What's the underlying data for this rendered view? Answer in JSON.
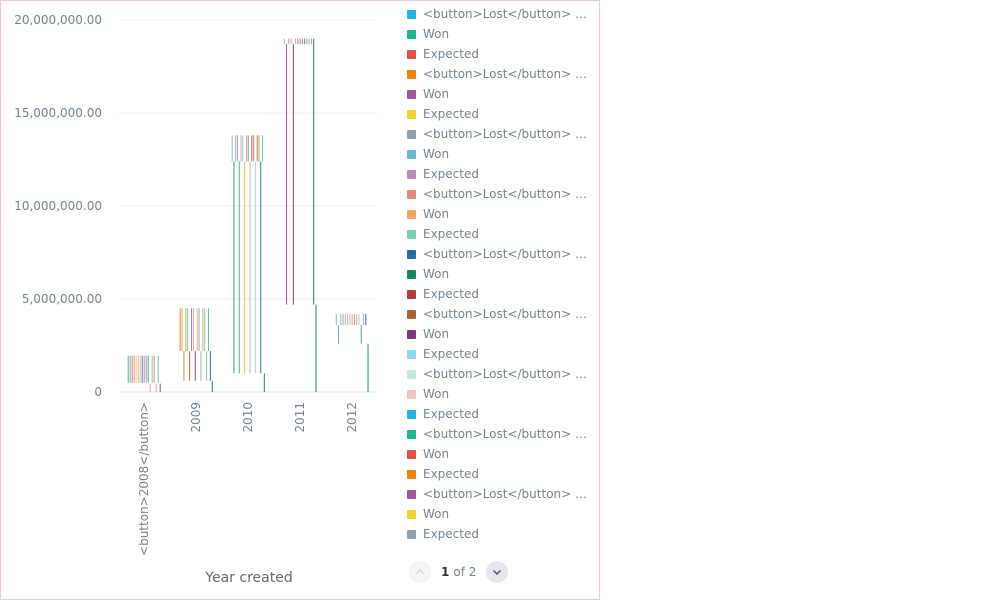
{
  "chart_data": {
    "type": "bar",
    "xlabel": "Year created",
    "ylabel": "",
    "ylim": [
      0,
      20000000
    ],
    "yticks": [
      {
        "value": 0,
        "label": "0"
      },
      {
        "value": 5000000,
        "label": "5,000,000.00"
      },
      {
        "value": 10000000,
        "label": "10,000,000.00"
      },
      {
        "value": 15000000,
        "label": "15,000,000.00"
      },
      {
        "value": 20000000,
        "label": "20,000,000.00"
      }
    ],
    "categories": [
      "<button>2008</button>",
      "2009",
      "2010",
      "2011",
      "2012"
    ],
    "grid": true,
    "legend_position": "right",
    "bar_groups": [
      {
        "category": "<button>2008</button>",
        "bars": [
          {
            "bottom": 500000,
            "top": 1950000,
            "color": "#509ee3"
          },
          {
            "bottom": 500000,
            "top": 1950000,
            "color": "#88bf4d"
          },
          {
            "bottom": 500000,
            "top": 1950000,
            "color": "#a989c5"
          },
          {
            "bottom": 500000,
            "top": 1950000,
            "color": "#ef8c8c"
          },
          {
            "bottom": 500000,
            "top": 1950000,
            "color": "#f9d45c"
          },
          {
            "bottom": 500000,
            "top": 1950000,
            "color": "#f2a86f"
          },
          {
            "bottom": 500000,
            "top": 1950000,
            "color": "#98d9d9"
          },
          {
            "bottom": 500000,
            "top": 1950000,
            "color": "#7172ad"
          },
          {
            "bottom": 500000,
            "top": 1950000,
            "color": "#c589b9"
          },
          {
            "bottom": 500000,
            "top": 1950000,
            "color": "#97a4ad"
          },
          {
            "bottom": 500000,
            "top": 1950000,
            "color": "#3ca6c8"
          },
          {
            "bottom": 0,
            "top": 450000,
            "color": "#e8a3a3"
          },
          {
            "bottom": 500000,
            "top": 1950000,
            "color": "#e0a86b"
          },
          {
            "bottom": 500000,
            "top": 1950000,
            "color": "#a4a4a4"
          },
          {
            "bottom": 0,
            "top": 450000,
            "color": "#de9f73"
          },
          {
            "bottom": 500000,
            "top": 1950000,
            "color": "#70c2a8"
          },
          {
            "bottom": 0,
            "top": 450000,
            "color": "#227fb8"
          }
        ]
      },
      {
        "category": "2009",
        "bars": [
          {
            "bottom": 2200000,
            "top": 4500000,
            "color": "#e08c36"
          },
          {
            "bottom": 2200000,
            "top": 4500000,
            "color": "#ef9c4f"
          },
          {
            "bottom": 600000,
            "top": 2200000,
            "color": "#c98f4f"
          },
          {
            "bottom": 2200000,
            "top": 4500000,
            "color": "#9ac46a"
          },
          {
            "bottom": 2200000,
            "top": 4500000,
            "color": "#84c4b7"
          },
          {
            "bottom": 600000,
            "top": 2200000,
            "color": "#b56d3a"
          },
          {
            "bottom": 2200000,
            "top": 4500000,
            "color": "#a67fc0"
          },
          {
            "bottom": 2200000,
            "top": 4500000,
            "color": "#dd9ba5"
          },
          {
            "bottom": 600000,
            "top": 2200000,
            "color": "#8f4a74"
          },
          {
            "bottom": 2200000,
            "top": 4500000,
            "color": "#e8c25c"
          },
          {
            "bottom": 2200000,
            "top": 4500000,
            "color": "#8fa7c8"
          },
          {
            "bottom": 600000,
            "top": 2200000,
            "color": "#9ab2b3"
          },
          {
            "bottom": 2200000,
            "top": 4500000,
            "color": "#d7b35a"
          },
          {
            "bottom": 2200000,
            "top": 4500000,
            "color": "#7ec8ba"
          },
          {
            "bottom": 600000,
            "top": 2200000,
            "color": "#a0c0a0"
          },
          {
            "bottom": 2200000,
            "top": 4500000,
            "color": "#5fc98f"
          },
          {
            "bottom": 600000,
            "top": 2200000,
            "color": "#2d6e93"
          },
          {
            "bottom": 0,
            "top": 600000,
            "color": "#1b8a63"
          }
        ]
      },
      {
        "category": "2010",
        "bars": [
          {
            "bottom": 12400000,
            "top": 13800000,
            "color": "#8dc2b5"
          },
          {
            "bottom": 1000000,
            "top": 12400000,
            "color": "#23a38f"
          },
          {
            "bottom": 12400000,
            "top": 13800000,
            "color": "#8fb0d3"
          },
          {
            "bottom": 12400000,
            "top": 13800000,
            "color": "#c5a0c2"
          },
          {
            "bottom": 1000000,
            "top": 12400000,
            "color": "#51b08f"
          },
          {
            "bottom": 12400000,
            "top": 13800000,
            "color": "#e0a0b0"
          },
          {
            "bottom": 12400000,
            "top": 13800000,
            "color": "#9ec3d8"
          },
          {
            "bottom": 1000000,
            "top": 12400000,
            "color": "#edc454"
          },
          {
            "bottom": 12400000,
            "top": 13800000,
            "color": "#e89f7f"
          },
          {
            "bottom": 12400000,
            "top": 13800000,
            "color": "#8e8fb8"
          },
          {
            "bottom": 1000000,
            "top": 12400000,
            "color": "#a8c8a8"
          },
          {
            "bottom": 12400000,
            "top": 13800000,
            "color": "#bd5a5a"
          },
          {
            "bottom": 12400000,
            "top": 13800000,
            "color": "#c1906f"
          },
          {
            "bottom": 1000000,
            "top": 12400000,
            "color": "#a6d7e9"
          },
          {
            "bottom": 12400000,
            "top": 13800000,
            "color": "#e47c4f"
          },
          {
            "bottom": 12400000,
            "top": 13800000,
            "color": "#7bbd8c"
          },
          {
            "bottom": 1000000,
            "top": 12400000,
            "color": "#2b79a5"
          },
          {
            "bottom": 12400000,
            "top": 13800000,
            "color": "#7ec48e"
          },
          {
            "bottom": 0,
            "top": 1000000,
            "color": "#1b8a63"
          }
        ]
      },
      {
        "category": "2011",
        "bars": [
          {
            "bottom": 18700000,
            "top": 19000000,
            "color": "#c5a8d6"
          },
          {
            "bottom": 4700000,
            "top": 18700000,
            "color": "#a44f8e"
          },
          {
            "bottom": 18700000,
            "top": 19000000,
            "color": "#d58fa5"
          },
          {
            "bottom": 18700000,
            "top": 19000000,
            "color": "#9fb7ce"
          },
          {
            "bottom": 4700000,
            "top": 18700000,
            "color": "#8a3f7b"
          },
          {
            "bottom": 18700000,
            "top": 19000000,
            "color": "#e2a07b"
          },
          {
            "bottom": 18700000,
            "top": 19000000,
            "color": "#b6889f"
          },
          {
            "bottom": 18700000,
            "top": 19000000,
            "color": "#7e97a4"
          },
          {
            "bottom": 18700000,
            "top": 19000000,
            "color": "#c27d62"
          },
          {
            "bottom": 18700000,
            "top": 19000000,
            "color": "#a45a8b"
          },
          {
            "bottom": 18700000,
            "top": 19000000,
            "color": "#80a8bf"
          },
          {
            "bottom": 18700000,
            "top": 19000000,
            "color": "#d6a66b"
          },
          {
            "bottom": 18700000,
            "top": 19000000,
            "color": "#89bca3"
          },
          {
            "bottom": 4700000,
            "top": 19000000,
            "color": "#187b63"
          },
          {
            "bottom": 0,
            "top": 4700000,
            "color": "#178a5c"
          }
        ]
      },
      {
        "category": "2012",
        "bars": [
          {
            "bottom": 3600000,
            "top": 4200000,
            "color": "#6fc2c2"
          },
          {
            "bottom": 2600000,
            "top": 3600000,
            "color": "#4ab0b0"
          },
          {
            "bottom": 3600000,
            "top": 4200000,
            "color": "#85c98f"
          },
          {
            "bottom": 3600000,
            "top": 4200000,
            "color": "#a7a7d3"
          },
          {
            "bottom": 3600000,
            "top": 4200000,
            "color": "#e4a0a0"
          },
          {
            "bottom": 3600000,
            "top": 4200000,
            "color": "#93c5e0"
          },
          {
            "bottom": 3600000,
            "top": 4200000,
            "color": "#f0c070"
          },
          {
            "bottom": 3600000,
            "top": 4200000,
            "color": "#d79bd7"
          },
          {
            "bottom": 3600000,
            "top": 4200000,
            "color": "#e08c36"
          },
          {
            "bottom": 3600000,
            "top": 4200000,
            "color": "#a0b8c8"
          },
          {
            "bottom": 3600000,
            "top": 4200000,
            "color": "#b9d79b"
          },
          {
            "bottom": 2600000,
            "top": 3600000,
            "color": "#3ea5b5"
          },
          {
            "bottom": 3600000,
            "top": 4200000,
            "color": "#c9a6d6"
          },
          {
            "bottom": 3600000,
            "top": 4200000,
            "color": "#2d6f96"
          },
          {
            "bottom": 0,
            "top": 2600000,
            "color": "#1d9065"
          }
        ]
      }
    ]
  },
  "legend": {
    "items": [
      {
        "label": "<button>Lost</button> …",
        "color": "#29b3e0"
      },
      {
        "label": "Won",
        "color": "#1fb58d"
      },
      {
        "label": "Expected",
        "color": "#e35245"
      },
      {
        "label": "<button>Lost</button> …",
        "color": "#ef8400"
      },
      {
        "label": "Won",
        "color": "#a5549e"
      },
      {
        "label": "Expected",
        "color": "#f3d22a"
      },
      {
        "label": "<button>Lost</button> …",
        "color": "#92a1ab"
      },
      {
        "label": "Won",
        "color": "#67b9d0"
      },
      {
        "label": "Expected",
        "color": "#b98bbb"
      },
      {
        "label": "<button>Lost</button> …",
        "color": "#e68a80"
      },
      {
        "label": "Won",
        "color": "#eba85e"
      },
      {
        "label": "Expected",
        "color": "#7ecfb0"
      },
      {
        "label": "<button>Lost</button> …",
        "color": "#2a6aa5"
      },
      {
        "label": "Won",
        "color": "#148461"
      },
      {
        "label": "Expected",
        "color": "#b43d3b"
      },
      {
        "label": "<button>Lost</button> …",
        "color": "#a2652f"
      },
      {
        "label": "Won",
        "color": "#7a3a7d"
      },
      {
        "label": "Expected",
        "color": "#8fd7e9"
      },
      {
        "label": "<button>Lost</button> …",
        "color": "#bfe9d9"
      },
      {
        "label": "Won",
        "color": "#f1c3c0"
      },
      {
        "label": "Expected",
        "color": "#29b3e0"
      },
      {
        "label": "<button>Lost</button> …",
        "color": "#1fb58d"
      },
      {
        "label": "Won",
        "color": "#e35245"
      },
      {
        "label": "Expected",
        "color": "#ef8400"
      },
      {
        "label": "<button>Lost</button> …",
        "color": "#a5549e"
      },
      {
        "label": "Won",
        "color": "#f3d22a"
      },
      {
        "label": "Expected",
        "color": "#92a1ab"
      }
    ]
  },
  "pager": {
    "current": "1",
    "of_text": "of 2",
    "prev_icon": "chevron-up-icon",
    "next_icon": "chevron-down-icon"
  }
}
